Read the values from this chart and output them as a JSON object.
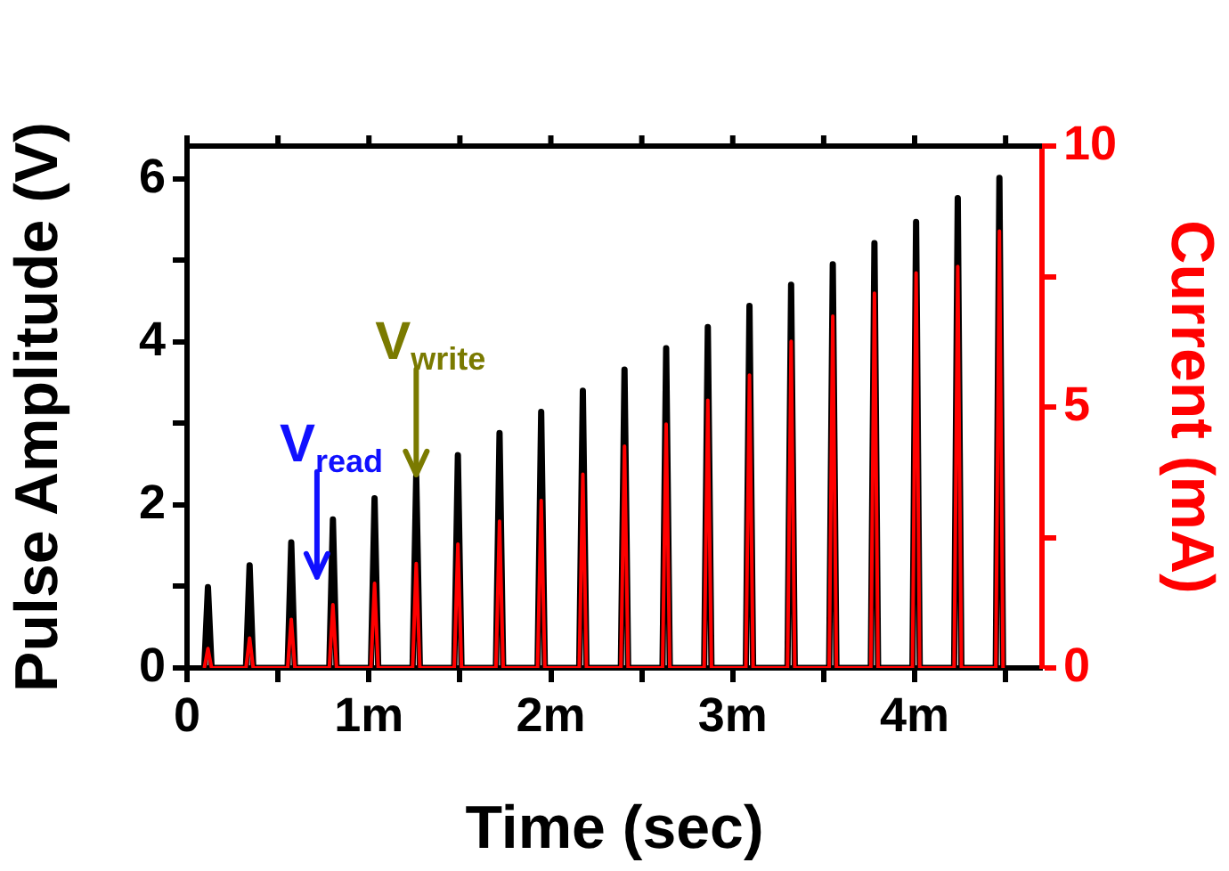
{
  "chart_data": {
    "type": "line",
    "xlabel": "Time (sec)",
    "ylabel": "Pulse Amplitude (V)",
    "y2label": "Current (mA)",
    "x": [
      0.095,
      0.115,
      0.135,
      0.324,
      0.344,
      0.364,
      0.553,
      0.573,
      0.593,
      0.782,
      0.802,
      0.822,
      1.011,
      1.031,
      1.051,
      1.24,
      1.26,
      1.28,
      1.469,
      1.489,
      1.509,
      1.698,
      1.718,
      1.738,
      1.927,
      1.947,
      1.967,
      2.156,
      2.176,
      2.196,
      2.385,
      2.405,
      2.425,
      2.614,
      2.634,
      2.654,
      2.843,
      2.863,
      2.883,
      3.072,
      3.092,
      3.112,
      3.301,
      3.321,
      3.341,
      3.53,
      3.55,
      3.57,
      3.759,
      3.779,
      3.799,
      3.988,
      4.008,
      4.028,
      4.217,
      4.237,
      4.257,
      4.446,
      4.466,
      4.486
    ],
    "series": [
      {
        "color": "#000000",
        "values": [
          0,
          0.99,
          0,
          0,
          1.26,
          0,
          0,
          1.54,
          0,
          0,
          1.82,
          0,
          0,
          2.08,
          0,
          0,
          2.35,
          0,
          0,
          2.61,
          0,
          0,
          2.88,
          0,
          0,
          3.14,
          0,
          0,
          3.4,
          0,
          0,
          3.66,
          0,
          0,
          3.92,
          0,
          0,
          4.18,
          0,
          0,
          4.44,
          0,
          0,
          4.7,
          0,
          0,
          4.95,
          0,
          0,
          5.21,
          0,
          0,
          5.47,
          0,
          0,
          5.76,
          0,
          0,
          6.01,
          0
        ]
      },
      {
        "color": "#ff0000",
        "axis": "y2",
        "values": [
          0,
          0.37,
          0,
          0,
          0.57,
          0,
          0,
          0.93,
          0,
          0,
          1.21,
          0,
          0,
          1.62,
          0,
          0,
          2.0,
          0,
          0,
          2.37,
          0,
          0,
          2.81,
          0,
          0,
          3.21,
          0,
          0,
          3.71,
          0,
          0,
          4.25,
          0,
          0,
          4.67,
          0,
          0,
          5.13,
          0,
          0,
          5.61,
          0,
          0,
          6.26,
          0,
          0,
          6.74,
          0,
          0,
          7.18,
          0,
          0,
          7.57,
          0,
          0,
          7.69,
          0,
          0,
          8.37,
          0
        ]
      }
    ],
    "xlim": [
      0,
      4.7
    ],
    "xticks": [
      0,
      {
        "value": 0.5,
        "label": null
      },
      {
        "value": 1,
        "label": "1m"
      },
      {
        "value": 1.5,
        "label": null
      },
      {
        "value": 2,
        "label": "2m"
      },
      {
        "value": 2.5,
        "label": null
      },
      {
        "value": 3,
        "label": "3m"
      },
      {
        "value": 3.5,
        "label": null
      },
      {
        "value": 4,
        "label": "4m"
      },
      {
        "value": 4.5,
        "label": null
      }
    ],
    "ylim": [
      0,
      6.4
    ],
    "yticks": [
      0,
      {
        "value": 1,
        "label": null
      },
      2,
      {
        "value": 3,
        "label": null
      },
      4,
      {
        "value": 5,
        "label": null
      },
      6
    ],
    "y2lim": [
      0,
      10
    ],
    "y2ticks": [
      0,
      {
        "value": 2.5,
        "label": null
      },
      5,
      {
        "value": 7.5,
        "label": null
      },
      10
    ],
    "annotations": [
      "V$_{read}$",
      {
        "text": "V$_{write}$",
        "x": 1.26,
        "y": 2.35
      }
    ],
    "grid": false,
    "legend": false,
    "marker": "none",
    "line_style": "solid"
  }
}
